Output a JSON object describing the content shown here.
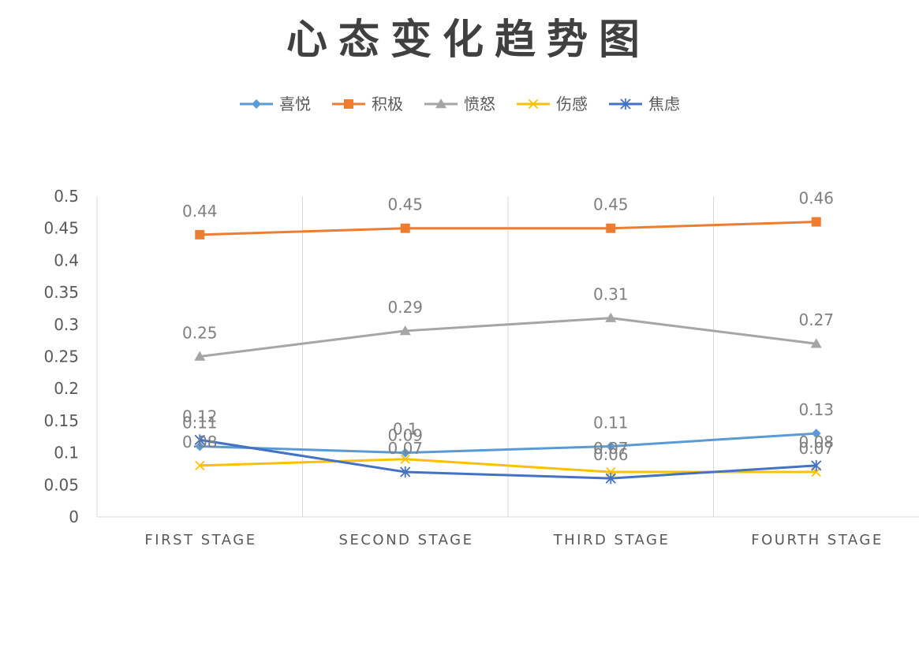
{
  "chart_data": {
    "type": "line",
    "title": "心态变化趋势图",
    "categories": [
      "FIRST STAGE",
      "SECOND STAGE",
      "THIRD STAGE",
      "FOURTH STAGE"
    ],
    "ylim": [
      0,
      0.5
    ],
    "yticks": [
      0,
      0.05,
      0.1,
      0.15,
      0.2,
      0.25,
      0.3,
      0.35,
      0.4,
      0.45,
      0.5
    ],
    "ytick_labels": [
      "0",
      "0.05",
      "0.1",
      "0.15",
      "0.2",
      "0.25",
      "0.3",
      "0.35",
      "0.4",
      "0.45",
      "0.5"
    ],
    "grid": "vertical",
    "legend_position": "top",
    "series": [
      {
        "name": "喜悦",
        "values": [
          0.11,
          0.1,
          0.11,
          0.13
        ],
        "labels": [
          "0.11",
          "0.1",
          "0.11",
          "0.13"
        ],
        "color": "#5B9BD5",
        "marker": "diamond"
      },
      {
        "name": "积极",
        "values": [
          0.44,
          0.45,
          0.45,
          0.46
        ],
        "labels": [
          "0.44",
          "0.45",
          "0.45",
          "0.46"
        ],
        "color": "#ED7D31",
        "marker": "square"
      },
      {
        "name": "愤怒",
        "values": [
          0.25,
          0.29,
          0.31,
          0.27
        ],
        "labels": [
          "0.25",
          "0.29",
          "0.31",
          "0.27"
        ],
        "color": "#A5A5A5",
        "marker": "triangle"
      },
      {
        "name": "伤感",
        "values": [
          0.08,
          0.09,
          0.07,
          0.07
        ],
        "labels": [
          "0.08",
          "0.09",
          "0.07",
          "0.07"
        ],
        "color": "#FFC000",
        "marker": "x"
      },
      {
        "name": "焦虑",
        "values": [
          0.12,
          0.07,
          0.06,
          0.08
        ],
        "labels": [
          "0.12",
          "0.07",
          "0.06",
          "0.08"
        ],
        "color": "#4472C4",
        "marker": "asterisk"
      }
    ]
  }
}
